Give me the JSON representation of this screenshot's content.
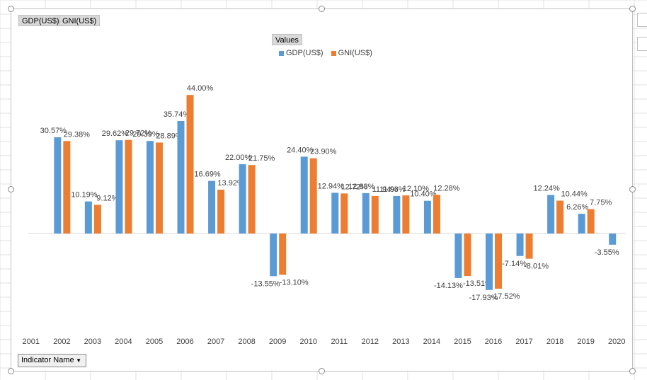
{
  "colors": {
    "gdp": "#5b9bd5",
    "gni": "#ed7d31",
    "axis": "#d9d9d9",
    "label": "#404040"
  },
  "field_buttons": [
    "GDP(US$)",
    "GNI(US$)"
  ],
  "values_header": "Values",
  "row_filter": {
    "label": "Indicator Name",
    "icon": "dropdown-arrow-icon"
  },
  "side_buttons": [
    "",
    ""
  ],
  "chart_data": {
    "type": "bar",
    "categories": [
      "2001",
      "2002",
      "2003",
      "2004",
      "2005",
      "2006",
      "2007",
      "2008",
      "2009",
      "2010",
      "2011",
      "2012",
      "2013",
      "2014",
      "2015",
      "2016",
      "2017",
      "2018",
      "2019",
      "2020"
    ],
    "series": [
      {
        "name": "GDP(US$)",
        "values": [
          null,
          30.57,
          10.19,
          29.62,
          29.39,
          35.74,
          16.69,
          22.0,
          -13.55,
          24.4,
          12.94,
          12.83,
          11.93,
          10.4,
          -14.13,
          -17.93,
          -7.14,
          12.24,
          6.26,
          -3.55
        ],
        "labels": [
          null,
          "30.57%",
          "10.19%",
          "29.62%",
          "29.39%",
          "35.74%",
          "16.69%",
          "22.00%",
          "-13.55%",
          "24.40%",
          "12.94%",
          "12.83%",
          "11.93%",
          "10.40%",
          "-14.13%",
          "-17.93%",
          "-7.14%",
          "12.24%",
          "6.26%",
          "-3.55%"
        ]
      },
      {
        "name": "GNI(US$)",
        "values": [
          null,
          29.38,
          9.12,
          29.72,
          28.89,
          44.0,
          13.92,
          21.75,
          -13.1,
          23.9,
          12.72,
          11.94,
          12.1,
          12.28,
          -13.51,
          -17.52,
          -8.01,
          10.44,
          7.75,
          null
        ],
        "labels": [
          null,
          "29.38%",
          "9.12%",
          "29.72%",
          "28.89%",
          "44.00%",
          "13.92%",
          "21.75%",
          "-13.10%",
          "23.90%",
          "12.72%",
          "11.94%",
          "12.10%",
          "12.28%",
          "-13.51%",
          "-17.52%",
          "-8.01%",
          "10.44%",
          "7.75%",
          null
        ]
      }
    ],
    "legend": "top-center",
    "grid": false,
    "title": "",
    "xlabel": "",
    "ylabel": ""
  }
}
